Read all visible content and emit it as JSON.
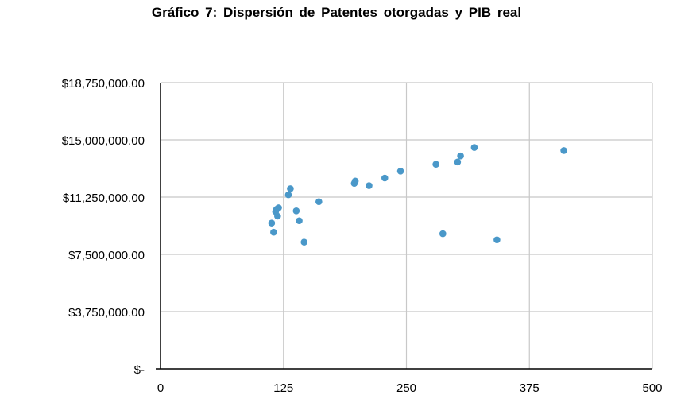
{
  "chart_data": {
    "type": "scatter",
    "title": "Gráfico 7: Dispersión  de Patentes otorgadas  y PIB real",
    "xlabel": "",
    "ylabel": "",
    "xlim": [
      0,
      500
    ],
    "ylim": [
      0,
      18750000
    ],
    "x_ticks": [
      0,
      125,
      250,
      375,
      500
    ],
    "x_tick_labels": [
      "0",
      "125",
      "250",
      "375",
      "500"
    ],
    "y_ticks": [
      0,
      3750000,
      7500000,
      11250000,
      15000000,
      18750000
    ],
    "y_tick_labels": [
      "$-",
      "$3,750,000.00",
      "$7,500,000.00",
      "$11,250,000.00",
      "$15,000,000.00",
      "$18,750,000.00"
    ],
    "grid": true,
    "series_color": "#4a98c9",
    "points": [
      {
        "x": 113,
        "y": 9550000
      },
      {
        "x": 115,
        "y": 8950000
      },
      {
        "x": 117,
        "y": 10300000
      },
      {
        "x": 118,
        "y": 10450000
      },
      {
        "x": 119,
        "y": 10000000
      },
      {
        "x": 120,
        "y": 10550000
      },
      {
        "x": 130,
        "y": 11400000
      },
      {
        "x": 132,
        "y": 11800000
      },
      {
        "x": 138,
        "y": 10350000
      },
      {
        "x": 141,
        "y": 9700000
      },
      {
        "x": 146,
        "y": 8300000
      },
      {
        "x": 161,
        "y": 10950000
      },
      {
        "x": 197,
        "y": 12150000
      },
      {
        "x": 198,
        "y": 12300000
      },
      {
        "x": 212,
        "y": 12000000
      },
      {
        "x": 228,
        "y": 12500000
      },
      {
        "x": 244,
        "y": 12950000
      },
      {
        "x": 280,
        "y": 13400000
      },
      {
        "x": 287,
        "y": 8850000
      },
      {
        "x": 302,
        "y": 13550000
      },
      {
        "x": 305,
        "y": 13950000
      },
      {
        "x": 319,
        "y": 14500000
      },
      {
        "x": 342,
        "y": 8450000
      },
      {
        "x": 410,
        "y": 14300000
      }
    ]
  }
}
